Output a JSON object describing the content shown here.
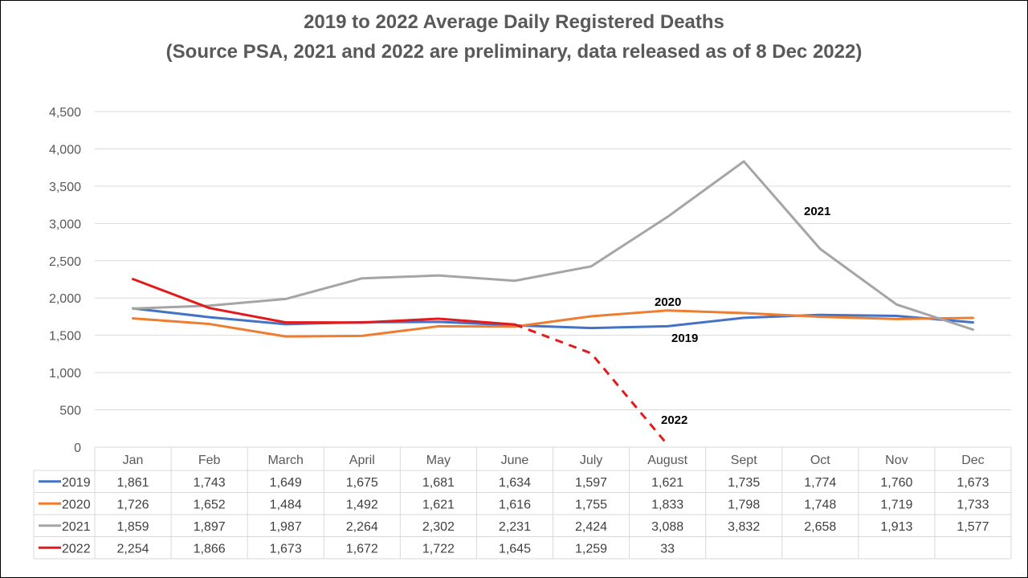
{
  "chart_data": {
    "type": "line",
    "title": "2019 to 2022 Average Daily Registered Deaths",
    "subtitle": "(Source PSA, 2021 and 2022 are preliminary, data released as of 8 Dec 2022)",
    "categories": [
      "Jan",
      "Feb",
      "March",
      "April",
      "May",
      "June",
      "July",
      "August",
      "Sept",
      "Oct",
      "Nov",
      "Dec"
    ],
    "y_ticks": [
      "0",
      "500",
      "1,000",
      "1,500",
      "2,000",
      "2,500",
      "3,000",
      "3,500",
      "4,000",
      "4,500"
    ],
    "ylim": [
      0,
      4500
    ],
    "grid": true,
    "legend": "data-table-below",
    "series": [
      {
        "name": "2019",
        "color": "#4472C4",
        "values": [
          1861,
          1743,
          1649,
          1675,
          1681,
          1634,
          1597,
          1621,
          1735,
          1774,
          1760,
          1673
        ],
        "labels": [
          "1,861",
          "1,743",
          "1,649",
          "1,675",
          "1,681",
          "1,634",
          "1,597",
          "1,621",
          "1,735",
          "1,774",
          "1,760",
          "1,673"
        ]
      },
      {
        "name": "2020",
        "color": "#ED7D31",
        "values": [
          1726,
          1652,
          1484,
          1492,
          1621,
          1616,
          1755,
          1833,
          1798,
          1748,
          1719,
          1733
        ],
        "labels": [
          "1,726",
          "1,652",
          "1,484",
          "1,492",
          "1,621",
          "1,616",
          "1,755",
          "1,833",
          "1,798",
          "1,748",
          "1,719",
          "1,733"
        ]
      },
      {
        "name": "2021",
        "color": "#A5A5A5",
        "values": [
          1859,
          1897,
          1987,
          2264,
          2302,
          2231,
          2424,
          3088,
          3832,
          2658,
          1913,
          1577
        ],
        "labels": [
          "1,859",
          "1,897",
          "1,987",
          "2,264",
          "2,302",
          "2,231",
          "2,424",
          "3,088",
          "3,832",
          "2,658",
          "1,913",
          "1,577"
        ]
      },
      {
        "name": "2022",
        "color": "#E31A1C",
        "values": [
          2254,
          1866,
          1673,
          1672,
          1722,
          1645,
          1259,
          33,
          null,
          null,
          null,
          null
        ],
        "labels": [
          "2,254",
          "1,866",
          "1,673",
          "1,672",
          "1,722",
          "1,645",
          "1,259",
          "33",
          "",
          "",
          "",
          ""
        ],
        "preliminary_from_index": 5
      }
    ],
    "annotations": [
      {
        "text": "2021",
        "series": "2021"
      },
      {
        "text": "2020",
        "series": "2020"
      },
      {
        "text": "2019",
        "series": "2019"
      },
      {
        "text": "2022",
        "series": "2022"
      }
    ]
  }
}
